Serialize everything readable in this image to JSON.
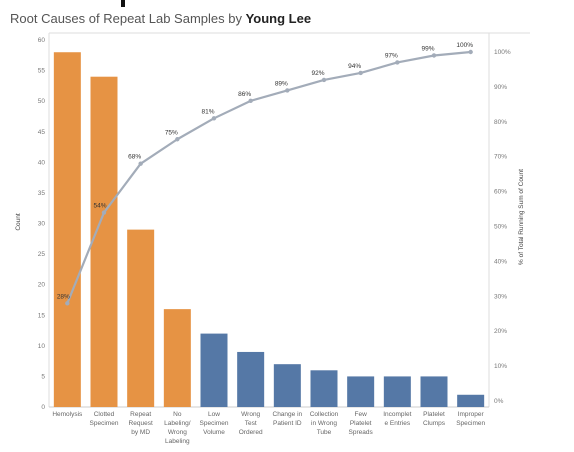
{
  "header": {
    "title_prefix": "Root Causes of Repeat Lab Samples by ",
    "title_author": "Young Lee"
  },
  "chart_data": {
    "type": "bar",
    "title": "Root Causes of Repeat Lab Samples by Young Lee",
    "ylabel": "Count",
    "y2label": "% of Total Running Sum of Count",
    "ylim": [
      0,
      60
    ],
    "y2lim": [
      0,
      100
    ],
    "yticks": [
      "0",
      "5",
      "10",
      "15",
      "20",
      "25",
      "30",
      "35",
      "40",
      "45",
      "50",
      "55",
      "60"
    ],
    "y2ticks": [
      "0%",
      "10%",
      "20%",
      "30%",
      "40%",
      "50%",
      "60%",
      "70%",
      "80%",
      "90%",
      "100%"
    ],
    "categories": [
      [
        "Hemolysis"
      ],
      [
        "Clotted",
        "Specimen"
      ],
      [
        "Repeat",
        "Request",
        "by MD"
      ],
      [
        "No",
        "Labeling/",
        "Wrong",
        "Labeling"
      ],
      [
        "Low",
        "Specimen",
        "Volume"
      ],
      [
        "Wrong",
        "Test",
        "Ordered"
      ],
      [
        "Change in",
        "Patient ID"
      ],
      [
        "Collection",
        "in Wrong",
        "Tube"
      ],
      [
        "Few",
        "Platelet",
        "Spreads"
      ],
      [
        "Incomplet",
        "e Entries"
      ],
      [
        "Platelet",
        "Clumps"
      ],
      [
        "Improper",
        "Specimen"
      ]
    ],
    "values": [
      58,
      54,
      29,
      16,
      12,
      9,
      7,
      6,
      5,
      5,
      5,
      2
    ],
    "bar_colors": [
      "#e69344",
      "#e69344",
      "#e69344",
      "#e69344",
      "#5578a6",
      "#5578a6",
      "#5578a6",
      "#5578a6",
      "#5578a6",
      "#5578a6",
      "#5578a6",
      "#5578a6"
    ],
    "cumulative_pct": [
      28,
      54,
      68,
      75,
      81,
      86,
      89,
      92,
      94,
      97,
      99,
      100
    ],
    "cumulative_labels": [
      "28%",
      "54%",
      "68%",
      "75%",
      "81%",
      "86%",
      "89%",
      "92%",
      "94%",
      "97%",
      "99%",
      "100%"
    ],
    "line_color": "#a3acb9",
    "grid": false
  }
}
